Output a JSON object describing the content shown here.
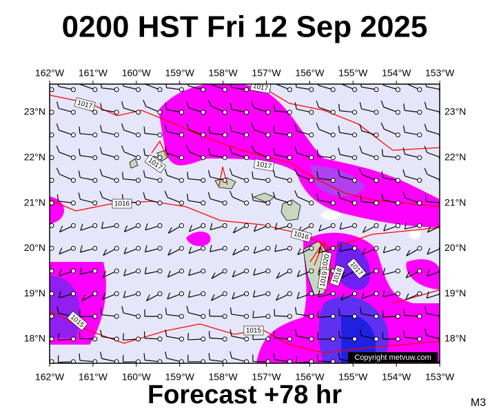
{
  "header": {
    "title": "0200 HST Fri 12 Sep 2025"
  },
  "footer": {
    "forecast": "Forecast +78 hr",
    "model": "M3"
  },
  "map": {
    "lon_labels": [
      "162°W",
      "161°W",
      "160°W",
      "159°W",
      "158°W",
      "157°W",
      "156°W",
      "155°W",
      "154°W",
      "153°W"
    ],
    "lat_labels": [
      "23°N",
      "22°N",
      "21°N",
      "20°N",
      "19°N",
      "18°N"
    ],
    "isobar_labels": [
      "1017",
      "1017",
      "1017",
      "1017",
      "1016",
      "1016",
      "1015",
      "1015",
      "1020",
      "1019",
      "1018",
      "1017"
    ],
    "copyright": "Copyright metvuw.com"
  }
}
